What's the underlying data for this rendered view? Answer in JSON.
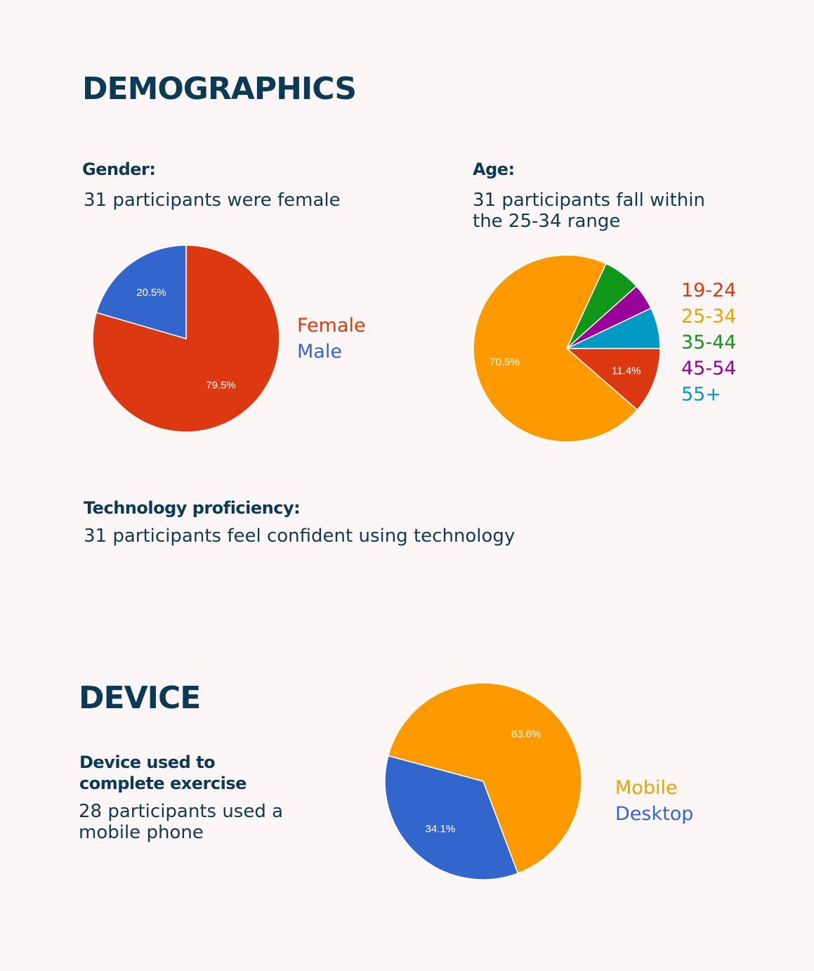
{
  "demographics": {
    "heading": "DEMOGRAPHICS",
    "gender": {
      "label": "Gender:",
      "summary": "31 participants were female"
    },
    "age": {
      "label": "Age:",
      "summary_line1": "31 participants fall within",
      "summary_line2": "the 25-34 range"
    },
    "tech": {
      "label": "Technology proficiency:",
      "summary": "31 participants feel confident using technology"
    }
  },
  "device": {
    "heading": "DEVICE",
    "label_line1": "Device used to",
    "label_line2": "complete exercise",
    "summary_line1": "28 participants used a",
    "summary_line2": "mobile phone"
  },
  "chart_data": [
    {
      "type": "pie",
      "id": "gender",
      "categories": [
        "Female",
        "Male"
      ],
      "values": [
        79.5,
        20.5
      ],
      "value_labels": [
        "79.5%",
        "20.5%"
      ],
      "colors": [
        "#dc3912",
        "#3366cc"
      ],
      "legend_colors": [
        "#dc3912",
        "#3366cc"
      ],
      "legend_position": "right"
    },
    {
      "type": "pie",
      "id": "age",
      "categories": [
        "19-24",
        "25-34",
        "35-44",
        "45-54",
        "55+"
      ],
      "values": [
        11.4,
        70.5,
        6.5,
        4.5,
        7.1
      ],
      "value_labels": [
        "11.4%",
        "70.5%",
        "",
        "",
        ""
      ],
      "colors": [
        "#dc3912",
        "#ff9900",
        "#109618",
        "#990099",
        "#0099c6"
      ],
      "legend_colors": [
        "#dc3912",
        "#e6a400",
        "#109618",
        "#990099",
        "#0099c6"
      ],
      "legend_position": "right"
    },
    {
      "type": "pie",
      "id": "device",
      "categories": [
        "Mobile",
        "Desktop"
      ],
      "values": [
        63.6,
        34.1
      ],
      "value_labels": [
        "63.6%",
        "34.1%"
      ],
      "colors": [
        "#ff9900",
        "#3366cc"
      ],
      "legend_colors": [
        "#e6a400",
        "#3366cc"
      ],
      "legend_position": "right"
    }
  ]
}
